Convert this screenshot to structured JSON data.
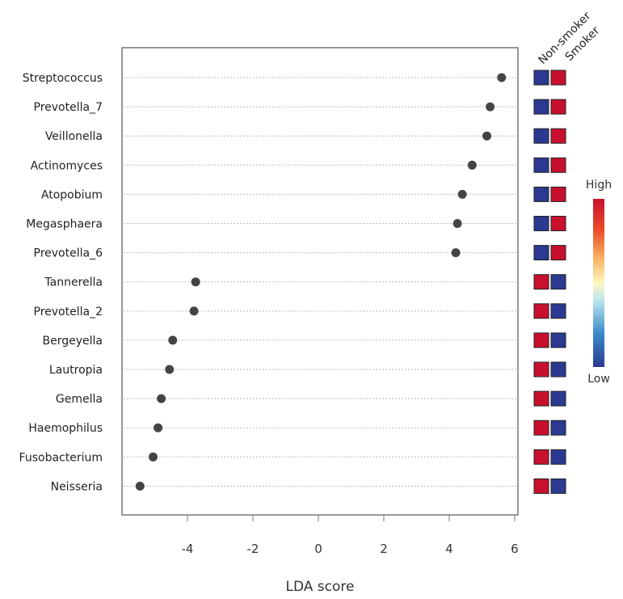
{
  "chart_data": {
    "type": "scatter",
    "title": "",
    "xlabel": "LDA score",
    "ylabel": "",
    "xlim": [
      -6.0,
      6.1
    ],
    "xticks": [
      -4,
      -2,
      0,
      2,
      4,
      6
    ],
    "xtick_labels": [
      "-4",
      "-2",
      "0",
      "2",
      "4",
      "6"
    ],
    "grid": "horizontal dotted",
    "categories": [
      "Streptococcus",
      "Prevotella_7",
      "Veillonella",
      "Actinomyces",
      "Atopobium",
      "Megasphaera",
      "Prevotella_6",
      "Tannerella",
      "Prevotella_2",
      "Bergeyella",
      "Lautropia",
      "Gemella",
      "Haemophilus",
      "Fusobacterium",
      "Neisseria"
    ],
    "values": [
      5.6,
      5.25,
      5.15,
      4.7,
      4.4,
      4.25,
      4.2,
      -3.75,
      -3.8,
      -4.45,
      -4.55,
      -4.8,
      -4.9,
      -5.05,
      -5.45
    ],
    "heatmap": {
      "columns": [
        "Non-smoker",
        "Smoker"
      ],
      "levels": [
        [
          "low",
          "high"
        ],
        [
          "low",
          "high"
        ],
        [
          "low",
          "high"
        ],
        [
          "low",
          "high"
        ],
        [
          "low",
          "high"
        ],
        [
          "low",
          "high"
        ],
        [
          "low",
          "high"
        ],
        [
          "high",
          "low"
        ],
        [
          "high",
          "low"
        ],
        [
          "high",
          "low"
        ],
        [
          "high",
          "low"
        ],
        [
          "high",
          "low"
        ],
        [
          "high",
          "low"
        ],
        [
          "high",
          "low"
        ],
        [
          "high",
          "low"
        ]
      ]
    },
    "legend": {
      "placement": "right",
      "high_label": "High",
      "low_label": "Low"
    },
    "colors": {
      "high": "#c8102e",
      "low": "#2b3990",
      "point": "#444444",
      "grid": "#bbbbbb",
      "frame": "#777777"
    }
  }
}
